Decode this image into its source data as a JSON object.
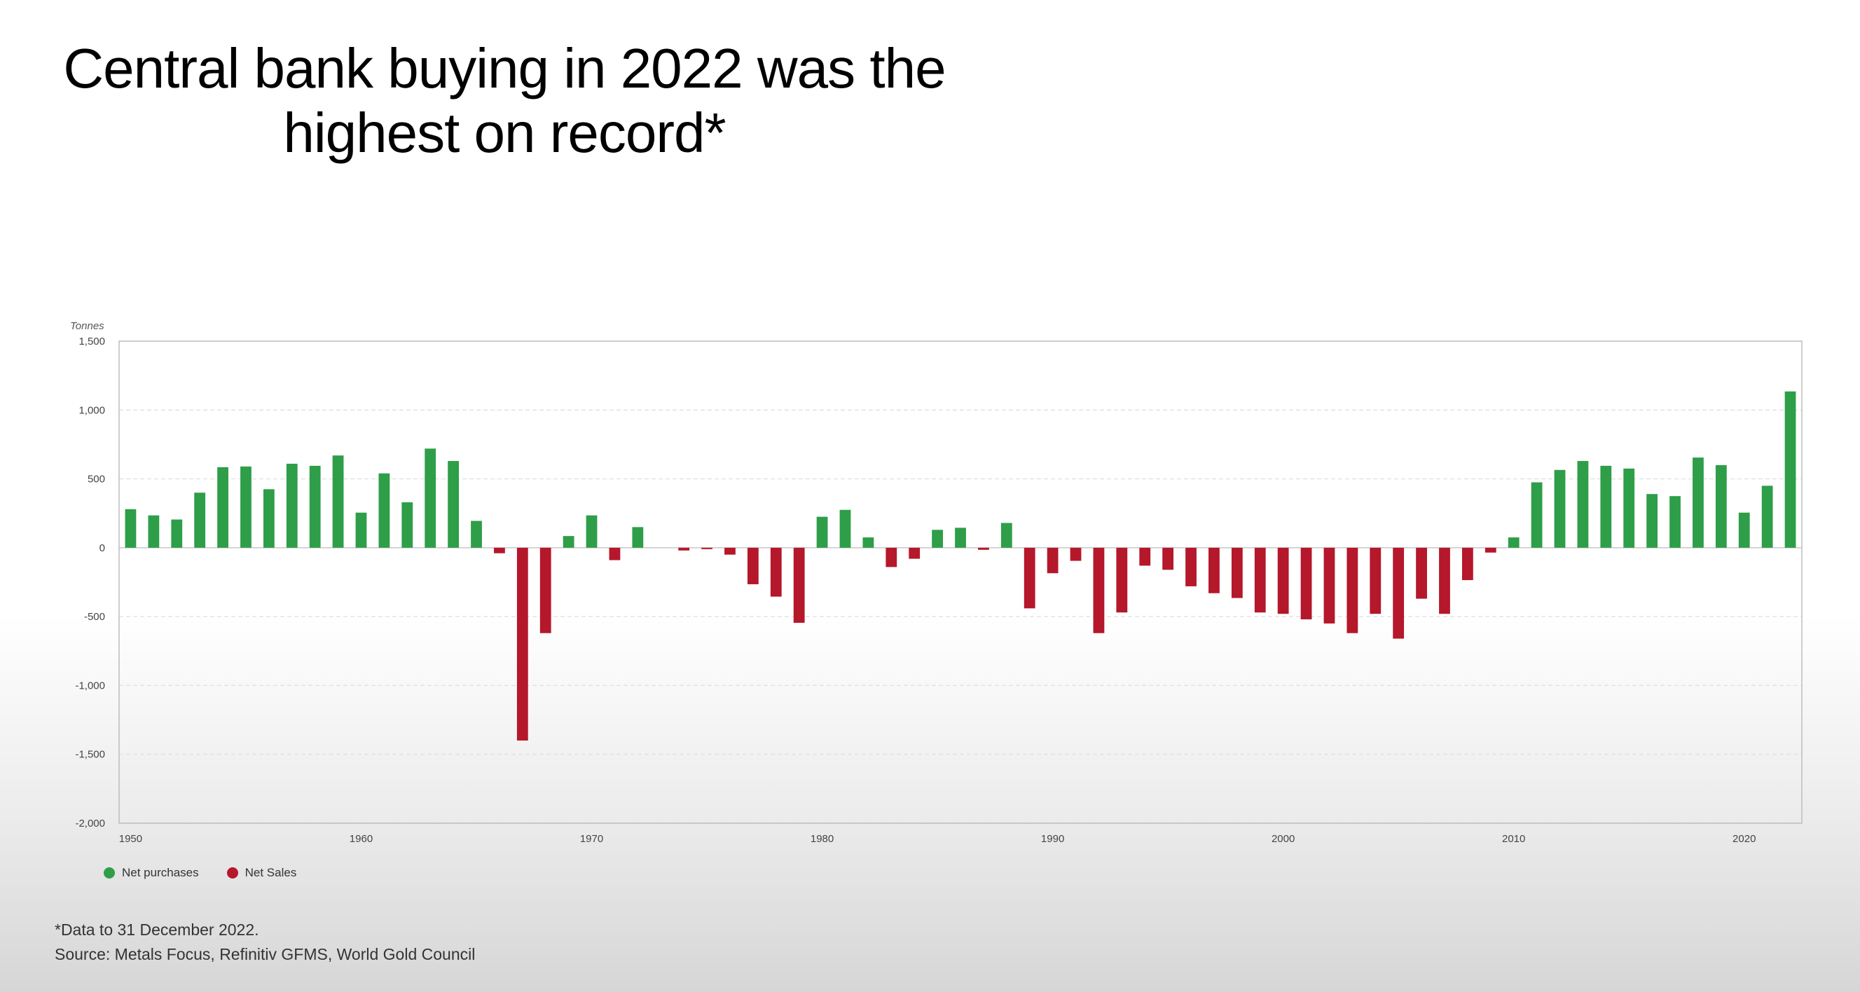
{
  "title_lines": [
    "Central bank buying in 2022 was the",
    "highest on record*"
  ],
  "legend": {
    "purchases_label": "Net purchases",
    "sales_label": "Net Sales",
    "purchases_color": "#2e9e48",
    "sales_color": "#b5172b"
  },
  "footnote": {
    "line1": "*Data to 31 December 2022.",
    "line2": "Source: Metals Focus, Refinitiv GFMS, World Gold Council"
  },
  "chart_data": {
    "type": "bar",
    "title": "Central bank buying in 2022 was the highest on record*",
    "ylabel": "Tonnes",
    "xlabel": "",
    "ylim": [
      -2000,
      1500
    ],
    "yticks": [
      1500,
      1000,
      500,
      0,
      -500,
      -1000,
      -1500,
      -2000
    ],
    "ytick_labels": [
      "1,500",
      "1,000",
      "500",
      "0",
      "-500",
      "-1,000",
      "-1,500",
      "-2,000"
    ],
    "xticks": [
      1950,
      1960,
      1970,
      1980,
      1990,
      2000,
      2010,
      2020
    ],
    "grid": true,
    "legend_position": "bottom-left",
    "series": [
      {
        "name": "Net purchases",
        "color": "#2e9e48"
      },
      {
        "name": "Net Sales",
        "color": "#b5172b"
      }
    ],
    "categories": [
      1950,
      1951,
      1952,
      1953,
      1954,
      1955,
      1956,
      1957,
      1958,
      1959,
      1960,
      1961,
      1962,
      1963,
      1964,
      1965,
      1966,
      1967,
      1968,
      1969,
      1970,
      1971,
      1972,
      1973,
      1974,
      1975,
      1976,
      1977,
      1978,
      1979,
      1980,
      1981,
      1982,
      1983,
      1984,
      1985,
      1986,
      1987,
      1988,
      1989,
      1990,
      1991,
      1992,
      1993,
      1994,
      1995,
      1996,
      1997,
      1998,
      1999,
      2000,
      2001,
      2002,
      2003,
      2004,
      2005,
      2006,
      2007,
      2008,
      2009,
      2010,
      2011,
      2012,
      2013,
      2014,
      2015,
      2016,
      2017,
      2018,
      2019,
      2020,
      2021,
      2022
    ],
    "values": [
      280,
      235,
      205,
      400,
      585,
      590,
      425,
      610,
      595,
      670,
      255,
      540,
      330,
      720,
      630,
      195,
      -40,
      -1400,
      -620,
      85,
      235,
      -90,
      150,
      0,
      -20,
      -10,
      -50,
      -265,
      -355,
      -545,
      225,
      275,
      75,
      -140,
      -80,
      130,
      145,
      -15,
      180,
      -440,
      -185,
      -95,
      -620,
      -470,
      -130,
      -160,
      -280,
      -330,
      -365,
      -470,
      -480,
      -520,
      -550,
      -620,
      -480,
      -660,
      -370,
      -480,
      -235,
      -35,
      75,
      475,
      565,
      630,
      595,
      575,
      390,
      375,
      655,
      600,
      255,
      450,
      1135
    ]
  }
}
